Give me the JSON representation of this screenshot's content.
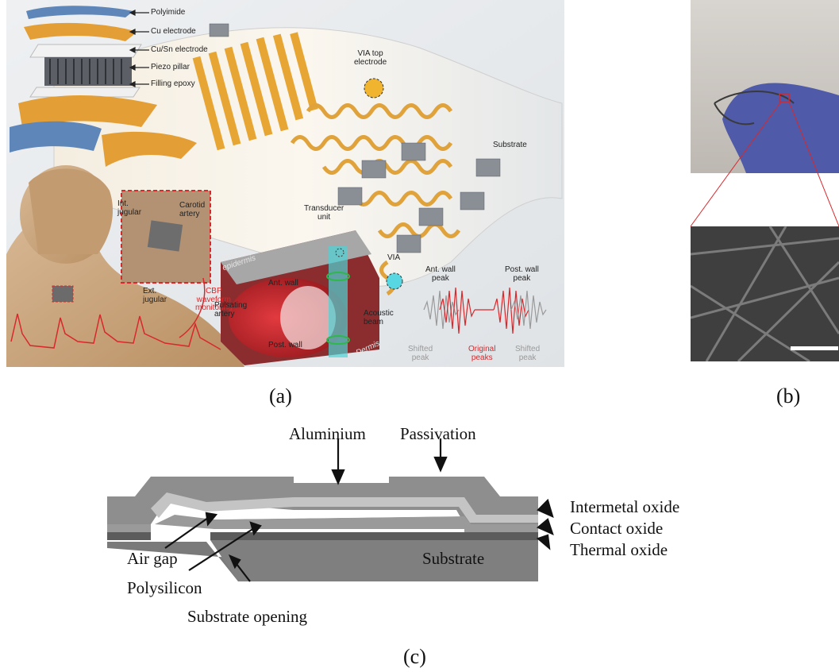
{
  "panel_a": {
    "stack_labels": [
      "Polyimide",
      "Cu electrode",
      "Cu/Sn electrode",
      "Piezo pillar",
      "Filling epoxy"
    ],
    "via_top": "VIA top\nelectrode",
    "substrate": "Substrate",
    "int_jugular": "Int.\njugular",
    "carotid": "Carotid\nartery",
    "ext_jugular": "Ext.\njugular",
    "cbp": "CBP\nwaveform\nmonitoring",
    "transducer": "Transducer\nunit",
    "skin": "Skin\nepidermis",
    "ant_wall": "Ant. wall",
    "pulsating": "Pulsating\nartery",
    "post_wall": "Post. wall",
    "dermis": "Dermis",
    "acoustic": "Acoustic\nbeam",
    "via": "VIA",
    "ant_peak": "Ant. wall\npeak",
    "post_peak": "Post. wall\npeak",
    "shifted_left": "Shifted\npeak",
    "original": "Original\npeaks",
    "shifted_right": "Shifted\npeak"
  },
  "panel_c": {
    "aluminium": "Aluminium",
    "passivation": "Passivation",
    "intermetal": "Intermetal oxide",
    "contact": "Contact oxide",
    "thermal": "Thermal oxide",
    "air_gap": "Air gap",
    "polysilicon": "Polysilicon",
    "substrate": "Substrate",
    "substrate_opening": "Substrate opening"
  },
  "captions": {
    "a": "(a)",
    "b": "(b)",
    "c": "(c)"
  },
  "colors": {
    "copper": "#e7a634",
    "polyimide": "#5e86b8",
    "artery": "#c4282e",
    "skin": "#c9a37c",
    "beam": "#4fd3d6"
  }
}
